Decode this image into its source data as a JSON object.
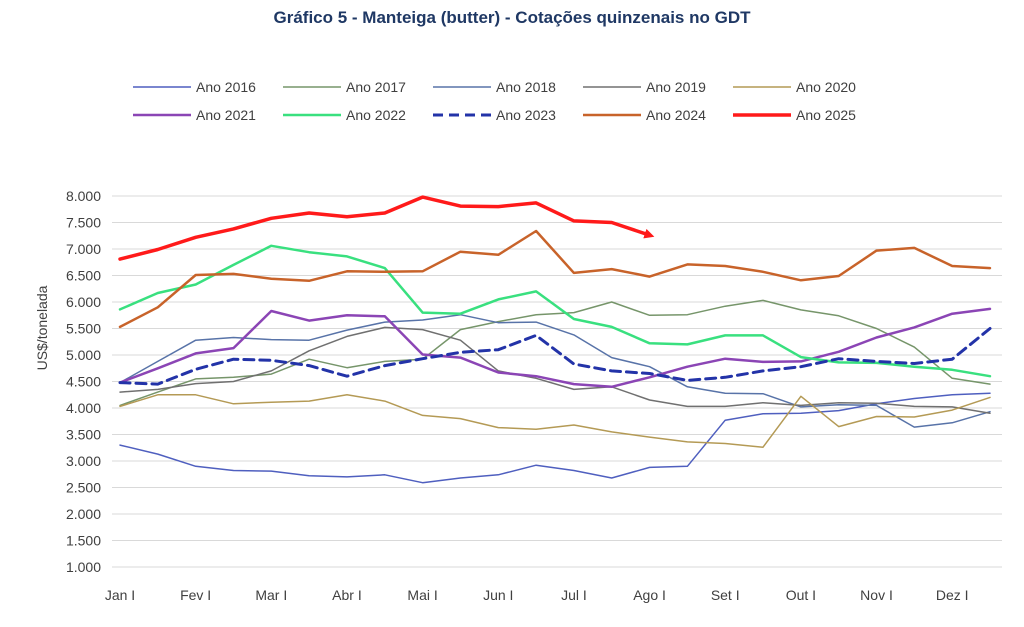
{
  "chart_data": {
    "type": "line",
    "title": "Gráfico 5 - Manteiga (butter) - Cotações quinzenais no GDT",
    "ylabel": "US$/tonelada",
    "xlabel": "",
    "ylim": [
      1000,
      8000
    ],
    "yticks": [
      1000,
      1500,
      2000,
      2500,
      3000,
      3500,
      4000,
      4500,
      5000,
      5500,
      6000,
      6500,
      7000,
      7500,
      8000
    ],
    "ytick_labels": [
      "1.000",
      "1.500",
      "2.000",
      "2.500",
      "3.000",
      "3.500",
      "4.000",
      "4.500",
      "5.000",
      "5.500",
      "6.000",
      "6.500",
      "7.000",
      "7.500",
      "8.000"
    ],
    "x_labels": [
      "Jan I",
      "Fev I",
      "Mar I",
      "Abr I",
      "Mai I",
      "Jun I",
      "Jul I",
      "Ago I",
      "Set I",
      "Out I",
      "Nov I",
      "Dez I"
    ],
    "grid": true,
    "legend_position": "top",
    "series": [
      {
        "name": "Ano 2016",
        "color": "#4f5fbf",
        "width": 1.5,
        "dash": "solid",
        "values": [
          3300,
          3130,
          2900,
          2820,
          2810,
          2720,
          2700,
          2740,
          2590,
          2680,
          2740,
          2920,
          2820,
          2680,
          2880,
          2900,
          3770,
          3890,
          3900,
          3950,
          4080,
          4180,
          4250,
          4280
        ]
      },
      {
        "name": "Ano 2017",
        "color": "#76956a",
        "width": 1.5,
        "dash": "solid",
        "values": [
          4050,
          4300,
          4550,
          4580,
          4640,
          4920,
          4760,
          4880,
          4920,
          5480,
          5630,
          5760,
          5800,
          6000,
          5750,
          5760,
          5920,
          6030,
          5850,
          5740,
          5500,
          5150,
          4560,
          4450
        ]
      },
      {
        "name": "Ano 2018",
        "color": "#5873a8",
        "width": 1.5,
        "dash": "solid",
        "values": [
          4480,
          4880,
          5280,
          5330,
          5290,
          5280,
          5470,
          5620,
          5660,
          5760,
          5610,
          5620,
          5380,
          4950,
          4780,
          4400,
          4280,
          4270,
          4020,
          4060,
          4050,
          3640,
          3720,
          3930
        ]
      },
      {
        "name": "Ano 2019",
        "color": "#707070",
        "width": 1.5,
        "dash": "solid",
        "values": [
          4300,
          4350,
          4460,
          4500,
          4700,
          5080,
          5350,
          5520,
          5480,
          5280,
          4700,
          4560,
          4350,
          4400,
          4150,
          4030,
          4030,
          4100,
          4050,
          4100,
          4090,
          4030,
          4020,
          3900
        ]
      },
      {
        "name": "Ano 2020",
        "color": "#b49a55",
        "width": 1.5,
        "dash": "solid",
        "values": [
          4030,
          4250,
          4250,
          4080,
          4110,
          4130,
          4250,
          4130,
          3860,
          3800,
          3630,
          3600,
          3680,
          3550,
          3450,
          3360,
          3330,
          3260,
          4220,
          3650,
          3840,
          3830,
          3960,
          4200
        ]
      },
      {
        "name": "Ano 2021",
        "color": "#8b45b5",
        "width": 2.5,
        "dash": "solid",
        "values": [
          4480,
          4750,
          5030,
          5130,
          5830,
          5650,
          5750,
          5730,
          5010,
          4950,
          4670,
          4600,
          4450,
          4400,
          4580,
          4780,
          4930,
          4870,
          4880,
          5060,
          5330,
          5520,
          5780,
          5870
        ]
      },
      {
        "name": "Ano 2022",
        "color": "#39e07f",
        "width": 2.5,
        "dash": "solid",
        "values": [
          5860,
          6170,
          6330,
          6700,
          7060,
          6940,
          6860,
          6640,
          5800,
          5780,
          6050,
          6200,
          5680,
          5530,
          5220,
          5200,
          5370,
          5370,
          4960,
          4860,
          4850,
          4780,
          4720,
          4600
        ]
      },
      {
        "name": "Ano 2023",
        "color": "#2333a8",
        "width": 3,
        "dash": "10,6",
        "values": [
          4480,
          4450,
          4730,
          4920,
          4900,
          4800,
          4600,
          4800,
          4930,
          5050,
          5100,
          5370,
          4830,
          4700,
          4650,
          4520,
          4580,
          4700,
          4780,
          4930,
          4880,
          4840,
          4920,
          5500
        ]
      },
      {
        "name": "Ano 2024",
        "color": "#c8632a",
        "width": 2.5,
        "dash": "solid",
        "values": [
          5530,
          5900,
          6510,
          6530,
          6440,
          6400,
          6580,
          6570,
          6580,
          6950,
          6890,
          7340,
          6550,
          6620,
          6480,
          6710,
          6680,
          6570,
          6410,
          6490,
          6970,
          7020,
          6680,
          6640
        ]
      },
      {
        "name": "Ano 2025",
        "color": "#ff1a1a",
        "width": 3.5,
        "dash": "solid",
        "arrow_end": true,
        "values": [
          6810,
          6990,
          7220,
          7380,
          7580,
          7680,
          7610,
          7680,
          7980,
          7810,
          7800,
          7870,
          7530,
          7500,
          7260
        ]
      }
    ]
  }
}
